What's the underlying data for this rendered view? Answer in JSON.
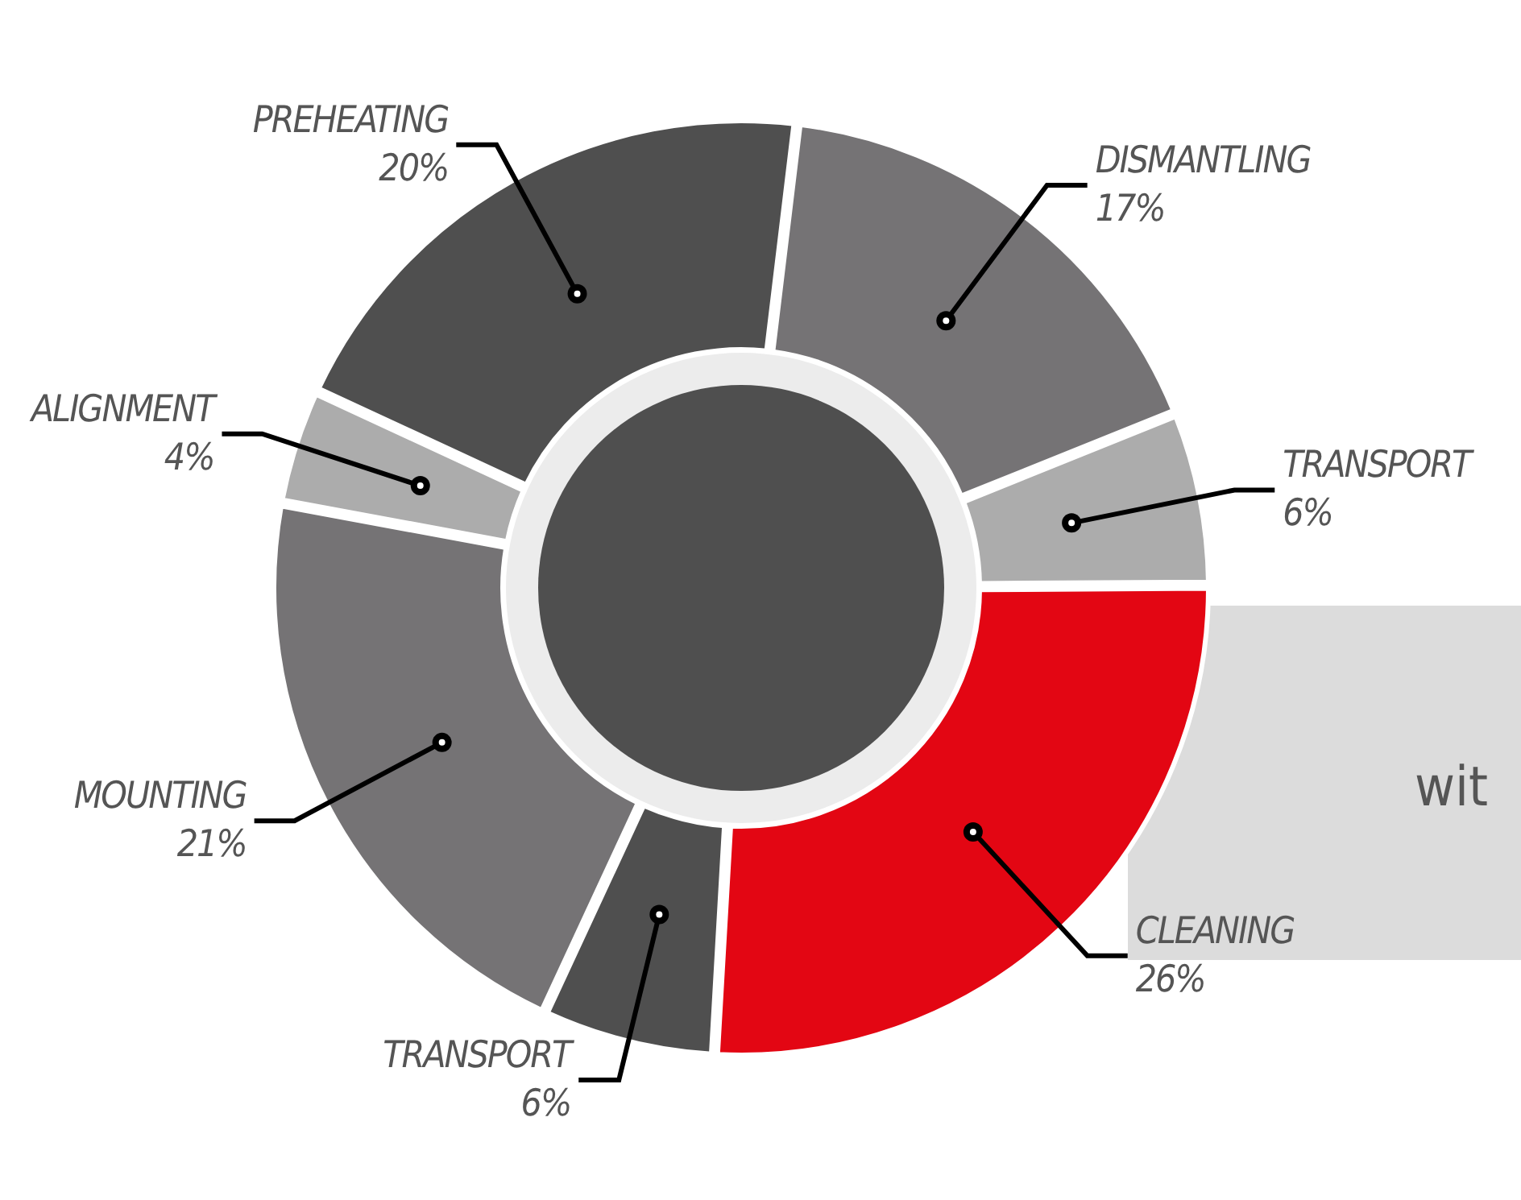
{
  "chart_data": {
    "type": "donut",
    "categories": [
      "DISMANTLING",
      "TRANSPORT",
      "CLEANING",
      "TRANSPORT",
      "MOUNTING",
      "ALIGNMENT",
      "PREHEATING"
    ],
    "values": [
      17,
      6,
      26,
      6,
      21,
      4,
      20
    ],
    "value_labels": [
      "17%",
      "6%",
      "26%",
      "6%",
      "21%",
      "4%",
      "20%"
    ],
    "colors": [
      "#757375",
      "#acacac",
      "#e30613",
      "#4f4f4f",
      "#757375",
      "#acacac",
      "#4f4f4f"
    ],
    "annotations": [
      "wit"
    ]
  }
}
